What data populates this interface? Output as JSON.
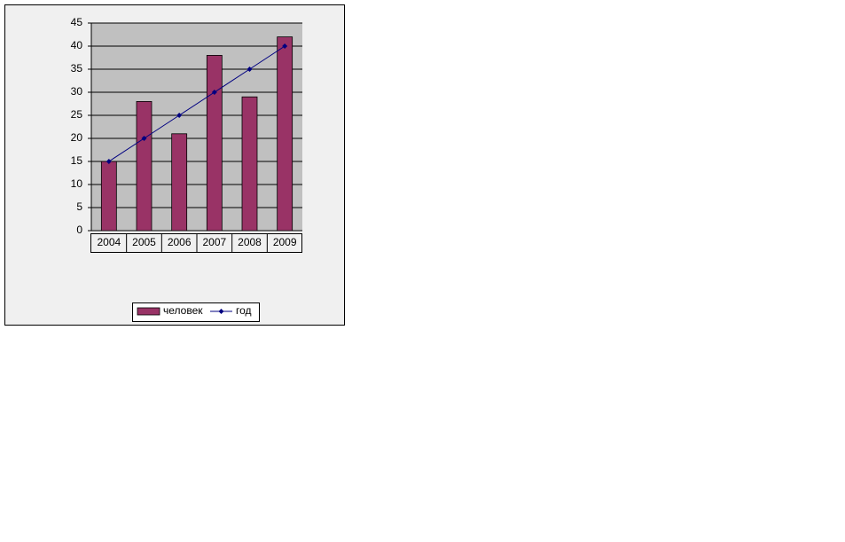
{
  "chart_data": {
    "type": "bar",
    "categories": [
      "2004",
      "2005",
      "2006",
      "2007",
      "2008",
      "2009"
    ],
    "series": [
      {
        "name": "человек",
        "type": "bar",
        "color": "#993366",
        "values": [
          15,
          28,
          21,
          38,
          29,
          42
        ]
      },
      {
        "name": "год",
        "type": "line",
        "color": "#000080",
        "values": [
          15,
          20,
          25,
          30,
          35,
          40
        ]
      }
    ],
    "ylim": [
      0,
      45
    ],
    "yticks": [
      0,
      5,
      10,
      15,
      20,
      25,
      30,
      35,
      40,
      45
    ],
    "grid": true,
    "legend": "bottom"
  }
}
